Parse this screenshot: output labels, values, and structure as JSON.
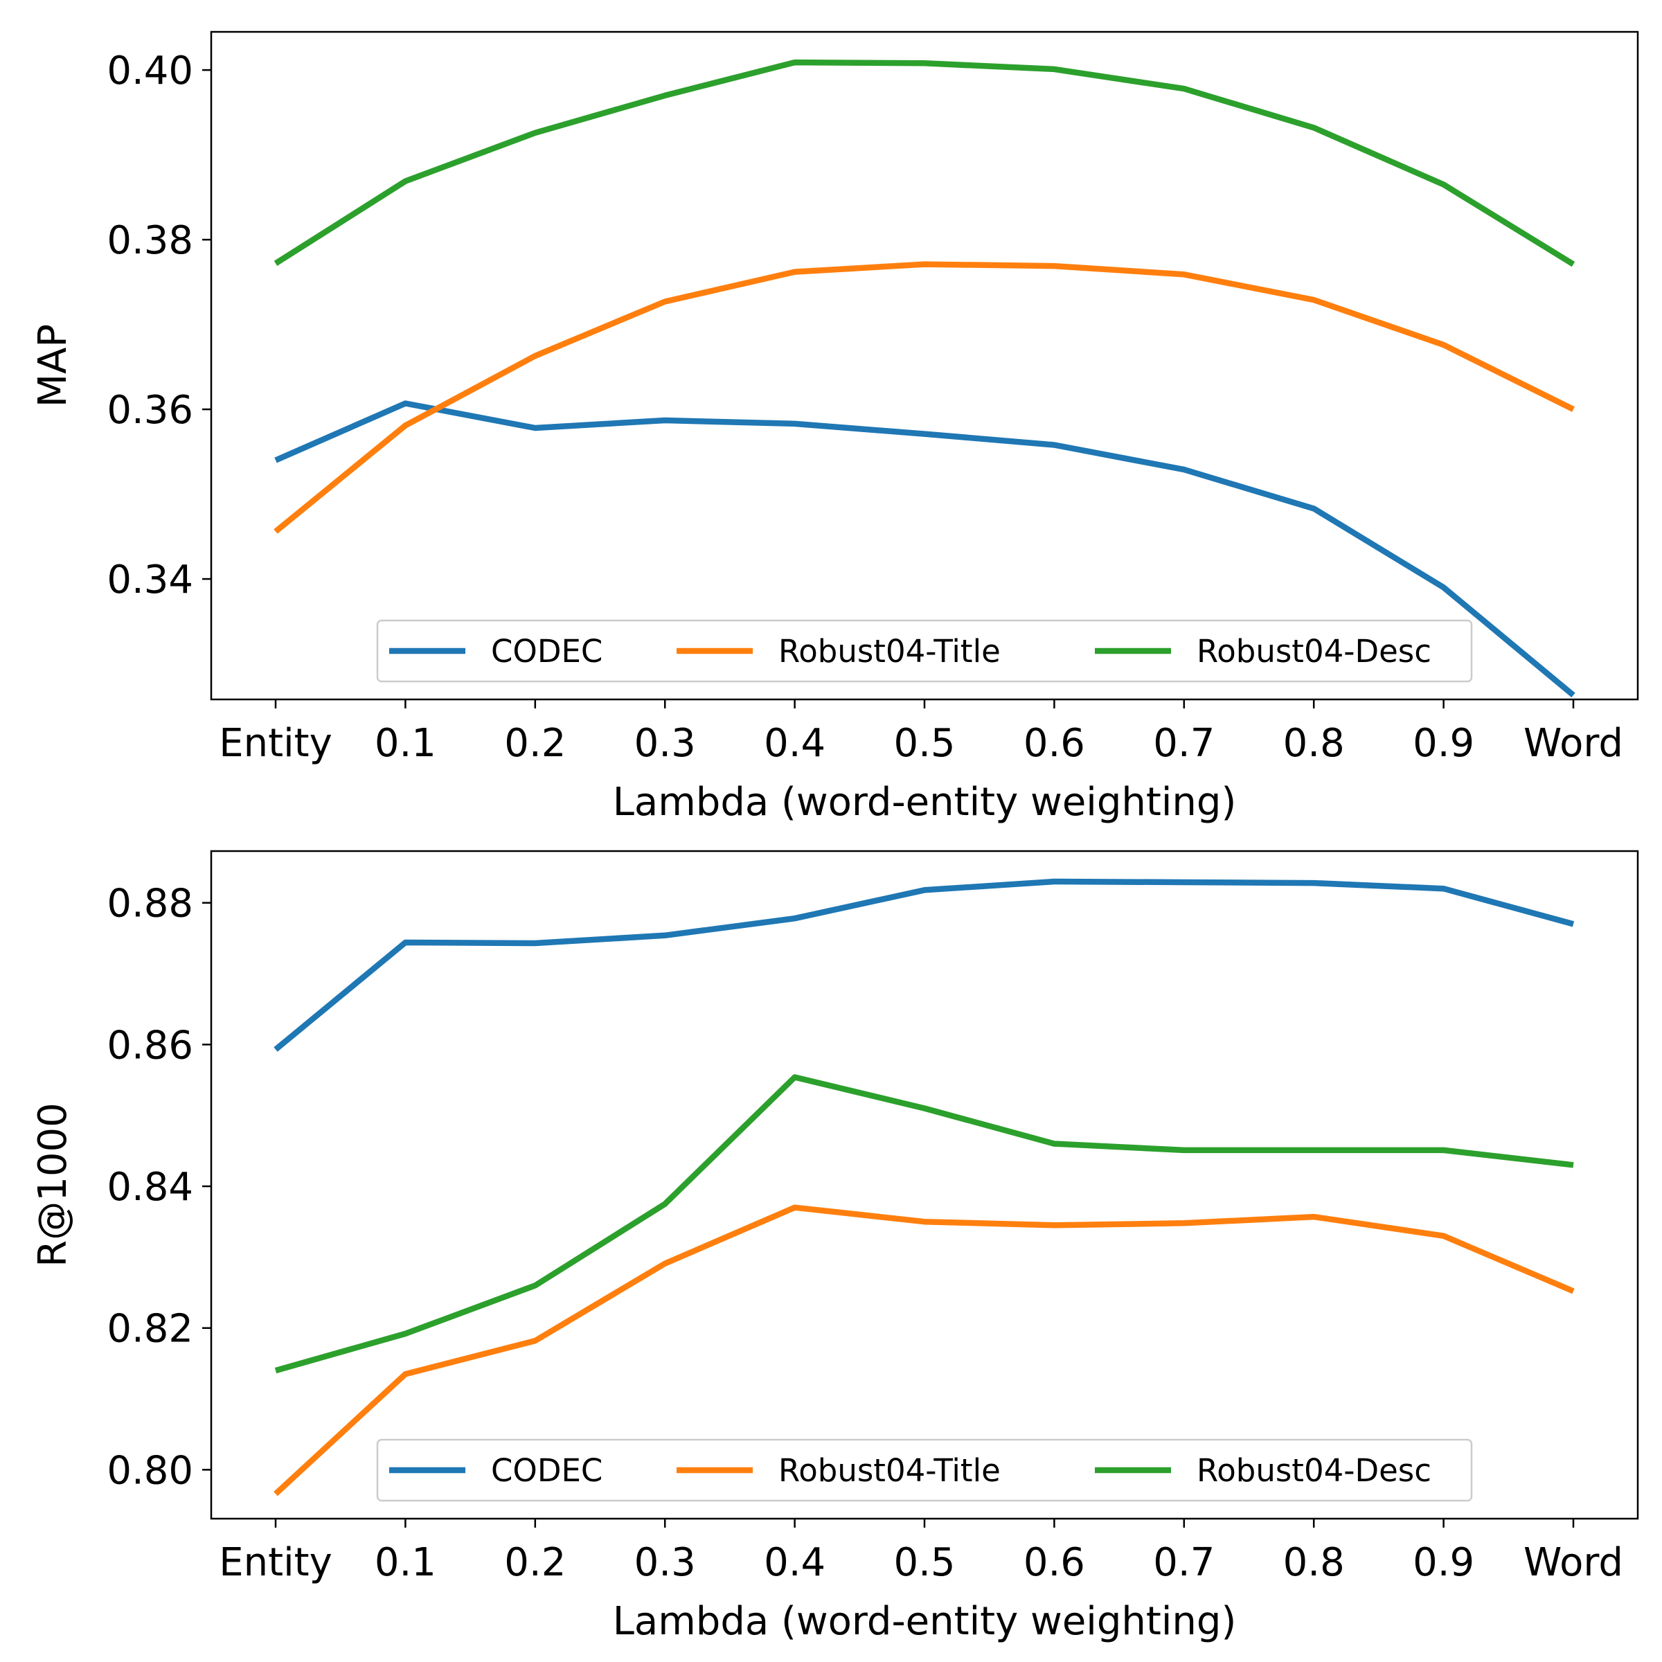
{
  "chart_data": [
    {
      "type": "line",
      "xlabel": "Lambda (word-entity weighting)",
      "ylabel": "MAP",
      "categories": [
        "Entity",
        "0.1",
        "0.2",
        "0.3",
        "0.4",
        "0.5",
        "0.6",
        "0.7",
        "0.8",
        "0.9",
        "Word"
      ],
      "ylim": [
        0.3258,
        0.4045
      ],
      "yticks": [
        0.34,
        0.36,
        0.38,
        0.4
      ],
      "ytick_labels": [
        "0.34",
        "0.36",
        "0.38",
        "0.40"
      ],
      "grid": false,
      "legend": {
        "placement": "lower center",
        "columns": 3
      },
      "series": [
        {
          "name": "CODEC",
          "color": "#1f77b4",
          "values": [
            0.354,
            0.3607,
            0.3578,
            0.3587,
            0.3583,
            0.3571,
            0.3558,
            0.3529,
            0.3483,
            0.339,
            0.3263
          ]
        },
        {
          "name": "Robust04-Title",
          "color": "#ff7f0e",
          "values": [
            0.3456,
            0.3581,
            0.3663,
            0.3727,
            0.3762,
            0.3771,
            0.3769,
            0.3759,
            0.3729,
            0.3676,
            0.36
          ]
        },
        {
          "name": "Robust04-Desc",
          "color": "#2ca02c",
          "values": [
            0.3772,
            0.3869,
            0.3926,
            0.397,
            0.4009,
            0.4008,
            0.4001,
            0.3978,
            0.3932,
            0.3865,
            0.3771
          ]
        }
      ]
    },
    {
      "type": "line",
      "xlabel": "Lambda (word-entity weighting)",
      "ylabel": "R@1000",
      "categories": [
        "Entity",
        "0.1",
        "0.2",
        "0.3",
        "0.4",
        "0.5",
        "0.6",
        "0.7",
        "0.8",
        "0.9",
        "Word"
      ],
      "ylim": [
        0.7931,
        0.8873
      ],
      "yticks": [
        0.8,
        0.82,
        0.84,
        0.86,
        0.88
      ],
      "ytick_labels": [
        "0.80",
        "0.82",
        "0.84",
        "0.86",
        "0.88"
      ],
      "grid": false,
      "legend": {
        "placement": "lower center",
        "columns": 3
      },
      "series": [
        {
          "name": "CODEC",
          "color": "#1f77b4",
          "values": [
            0.8593,
            0.8744,
            0.8743,
            0.8754,
            0.8778,
            0.8818,
            0.883,
            0.8829,
            0.8828,
            0.882,
            0.877
          ]
        },
        {
          "name": "Robust04-Title",
          "color": "#ff7f0e",
          "values": [
            0.7966,
            0.8135,
            0.8182,
            0.8291,
            0.837,
            0.835,
            0.8345,
            0.8348,
            0.8357,
            0.833,
            0.8252
          ]
        },
        {
          "name": "Robust04-Desc",
          "color": "#2ca02c",
          "values": [
            0.814,
            0.8192,
            0.826,
            0.8375,
            0.8554,
            0.851,
            0.846,
            0.8451,
            0.8451,
            0.8451,
            0.843
          ]
        }
      ]
    }
  ]
}
